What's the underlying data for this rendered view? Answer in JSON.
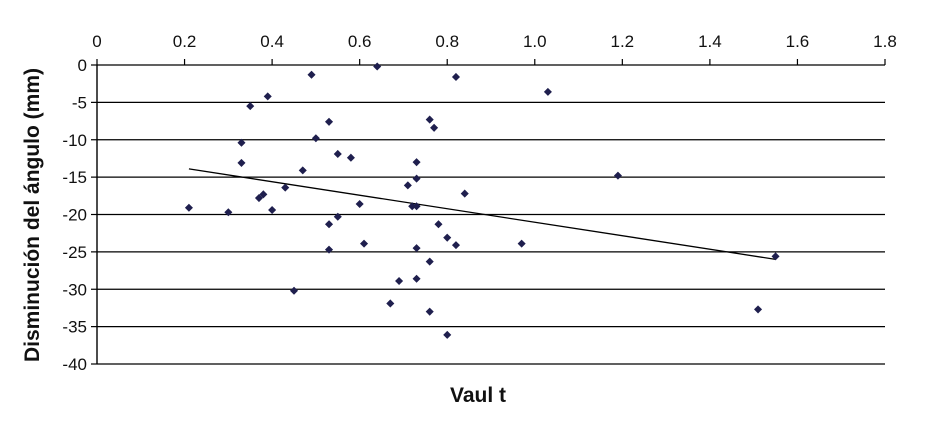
{
  "chart_data": {
    "type": "scatter",
    "xlabel": "Vaul t",
    "ylabel": "Disminución del ángulo (mm)",
    "xlim": [
      0,
      1.8
    ],
    "ylim": [
      -40,
      0
    ],
    "x_ticks": [
      "0",
      "0.2",
      "0.4",
      "0.6",
      "0.8",
      "1.0",
      "1.2",
      "1.4",
      "1.6",
      "1.8"
    ],
    "y_ticks": [
      "0",
      "-5",
      "-10",
      "-15",
      "-20",
      "-25",
      "-30",
      "-35",
      "-40"
    ],
    "x_axis_position": "top",
    "grid": "horizontal",
    "legend": "none",
    "marker_color": "#1f1f4e",
    "points": [
      {
        "x": 0.64,
        "y": -0.2
      },
      {
        "x": 0.49,
        "y": -1.3
      },
      {
        "x": 0.82,
        "y": -1.6
      },
      {
        "x": 1.03,
        "y": -3.6
      },
      {
        "x": 0.39,
        "y": -4.2
      },
      {
        "x": 0.35,
        "y": -5.5
      },
      {
        "x": 0.53,
        "y": -7.6
      },
      {
        "x": 0.76,
        "y": -7.3
      },
      {
        "x": 0.77,
        "y": -8.4
      },
      {
        "x": 0.5,
        "y": -9.8
      },
      {
        "x": 0.33,
        "y": -10.4
      },
      {
        "x": 0.55,
        "y": -11.9
      },
      {
        "x": 0.58,
        "y": -12.4
      },
      {
        "x": 0.33,
        "y": -13.1
      },
      {
        "x": 0.73,
        "y": -13.0
      },
      {
        "x": 0.47,
        "y": -14.1
      },
      {
        "x": 0.73,
        "y": -15.2
      },
      {
        "x": 1.19,
        "y": -14.8
      },
      {
        "x": 0.71,
        "y": -16.1
      },
      {
        "x": 0.43,
        "y": -16.4
      },
      {
        "x": 0.38,
        "y": -17.3
      },
      {
        "x": 0.37,
        "y": -17.8
      },
      {
        "x": 0.84,
        "y": -17.2
      },
      {
        "x": 0.6,
        "y": -18.6
      },
      {
        "x": 0.72,
        "y": -18.9
      },
      {
        "x": 0.73,
        "y": -18.9
      },
      {
        "x": 0.21,
        "y": -19.1
      },
      {
        "x": 0.4,
        "y": -19.4
      },
      {
        "x": 0.3,
        "y": -19.7
      },
      {
        "x": 0.55,
        "y": -20.3
      },
      {
        "x": 0.53,
        "y": -21.3
      },
      {
        "x": 0.78,
        "y": -21.3
      },
      {
        "x": 0.8,
        "y": -23.1
      },
      {
        "x": 0.61,
        "y": -23.9
      },
      {
        "x": 0.82,
        "y": -24.1
      },
      {
        "x": 0.97,
        "y": -23.9
      },
      {
        "x": 0.53,
        "y": -24.7
      },
      {
        "x": 0.73,
        "y": -24.5
      },
      {
        "x": 1.55,
        "y": -25.6
      },
      {
        "x": 0.76,
        "y": -26.3
      },
      {
        "x": 0.73,
        "y": -28.6
      },
      {
        "x": 0.69,
        "y": -28.9
      },
      {
        "x": 0.45,
        "y": -30.2
      },
      {
        "x": 0.67,
        "y": -31.9
      },
      {
        "x": 1.51,
        "y": -32.7
      },
      {
        "x": 0.76,
        "y": -33.0
      },
      {
        "x": 0.8,
        "y": -36.1
      }
    ],
    "trendline": {
      "x": [
        0.21,
        1.55
      ],
      "y": [
        -13.9,
        -26.0
      ]
    }
  }
}
